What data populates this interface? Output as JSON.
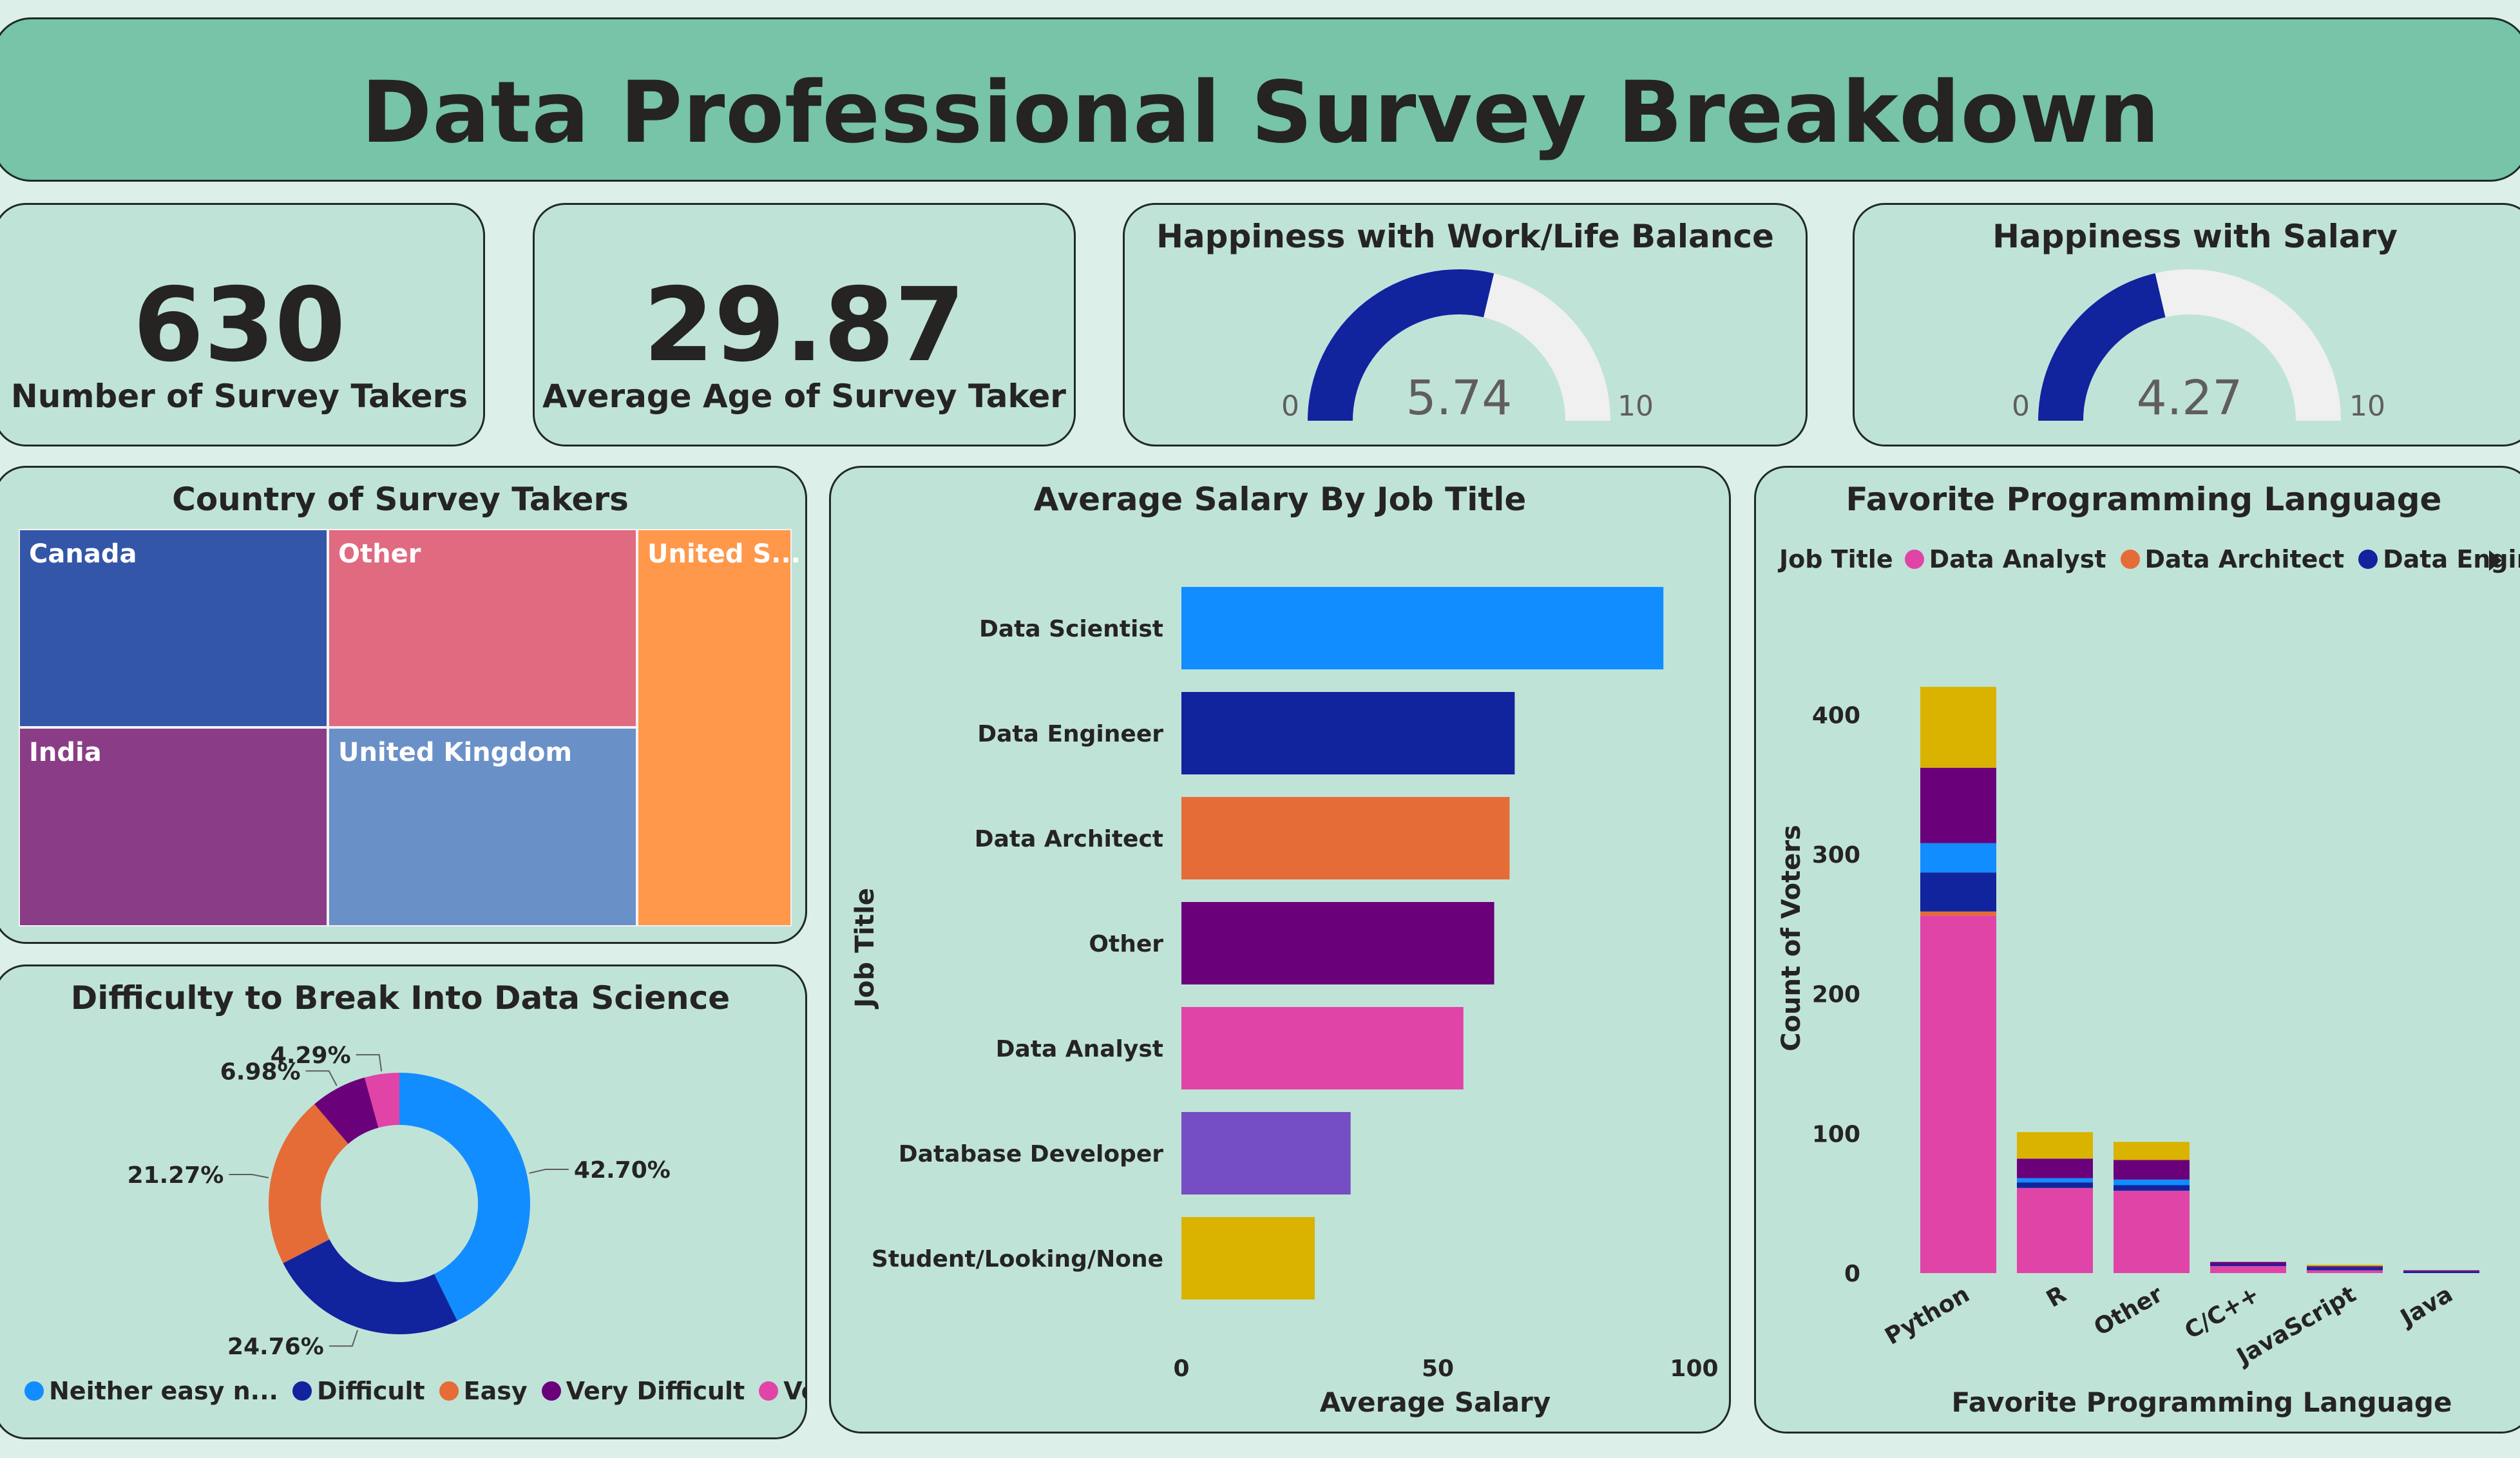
{
  "header": {
    "title": "Data Professional Survey Breakdown"
  },
  "kpis": {
    "survey_takers": {
      "value": "630",
      "label": "Number of Survey Takers"
    },
    "average_age": {
      "value": "29.87",
      "label": "Average Age of Survey Taker"
    }
  },
  "gauges": {
    "work_life": {
      "title": "Happiness with Work/Life Balance",
      "value": 5.74,
      "value_label": "5.74",
      "min_label": "0",
      "max_label": "10",
      "min": 0,
      "max": 10
    },
    "salary": {
      "title": "Happiness with Salary",
      "value": 4.27,
      "value_label": "4.27",
      "min_label": "0",
      "max_label": "10",
      "min": 0,
      "max": 10
    }
  },
  "treemap": {
    "title": "Country of Survey Takers",
    "cells": [
      {
        "label": "Canada",
        "color": "#3356a8"
      },
      {
        "label": "Other",
        "color": "#e06a80"
      },
      {
        "label": "United S...",
        "color": "#ff984a"
      },
      {
        "label": "India",
        "color": "#8a3d86"
      },
      {
        "label": "United Kingdom",
        "color": "#6a90c8"
      }
    ]
  },
  "donut": {
    "title": "Difficulty to Break Into Data Science",
    "legend": [
      {
        "label": "Neither easy n...",
        "color": "#118dff"
      },
      {
        "label": "Difficult",
        "color": "#12239e"
      },
      {
        "label": "Easy",
        "color": "#e66c37"
      },
      {
        "label": "Very Difficult",
        "color": "#6b007b"
      },
      {
        "label": "Very Easy",
        "color": "#e044a7"
      }
    ]
  },
  "salary_chart": {
    "title": "Average Salary By Job Title",
    "ylabel": "Job Title",
    "xlabel": "Average Salary",
    "ticks": [
      "0",
      "50",
      "100"
    ]
  },
  "language_chart": {
    "title": "Favorite Programming Language",
    "legend_title": "Job Title",
    "legend": [
      {
        "label": "Data Analyst",
        "color": "#e044a7"
      },
      {
        "label": "Data Architect",
        "color": "#e66c37"
      },
      {
        "label": "Data Engin...",
        "color": "#12239e"
      }
    ],
    "ylabel": "Count of Voters",
    "xlabel": "Favorite Programming Language",
    "yticks": [
      "0",
      "100",
      "200",
      "300",
      "400"
    ]
  },
  "chart_data": [
    {
      "type": "pie",
      "title": "Difficulty to Break Into Data Science",
      "categories": [
        "Neither easy nor difficult",
        "Difficult",
        "Easy",
        "Very Difficult",
        "Very Easy"
      ],
      "values": [
        42.7,
        24.76,
        21.27,
        6.98,
        4.29
      ],
      "value_labels": [
        "42.70%",
        "24.76%",
        "21.27%",
        "6.98%",
        "4.29%"
      ],
      "colors": [
        "#118dff",
        "#12239e",
        "#e66c37",
        "#6b007b",
        "#e044a7"
      ],
      "legend": "bottom"
    },
    {
      "type": "bar",
      "orientation": "horizontal",
      "title": "Average Salary By Job Title",
      "categories": [
        "Data Scientist",
        "Data Engineer",
        "Data Architect",
        "Other",
        "Data Analyst",
        "Database Developer",
        "Student/Looking/None"
      ],
      "values": [
        94,
        65,
        64,
        61,
        55,
        33,
        26
      ],
      "colors": [
        "#118dff",
        "#12239e",
        "#e66c37",
        "#6b007b",
        "#e044a7",
        "#744ec2",
        "#d9b300"
      ],
      "xlabel": "Average Salary",
      "ylabel": "Job Title",
      "xlim": [
        0,
        100
      ]
    },
    {
      "type": "bar",
      "stacked": true,
      "title": "Favorite Programming Language",
      "categories": [
        "Python",
        "R",
        "Other",
        "C/C++",
        "JavaScript",
        "Java"
      ],
      "series": [
        {
          "name": "Data Analyst",
          "color": "#e044a7",
          "values": [
            256,
            61,
            59,
            5,
            2,
            0
          ]
        },
        {
          "name": "Data Architect",
          "color": "#e66c37",
          "values": [
            3,
            0,
            0,
            0,
            0,
            0
          ]
        },
        {
          "name": "Data Engineer",
          "color": "#12239e",
          "values": [
            28,
            4,
            4,
            1,
            2,
            1
          ]
        },
        {
          "color": "#118dff",
          "values": [
            21,
            3,
            4,
            0,
            0,
            0
          ]
        },
        {
          "color": "#6b007b",
          "values": [
            54,
            14,
            14,
            2,
            1,
            1
          ]
        },
        {
          "color": "#d9b300",
          "values": [
            58,
            19,
            13,
            0,
            1,
            0
          ]
        }
      ],
      "xlabel": "Favorite Programming Language",
      "ylabel": "Count of Voters",
      "ylim": [
        0,
        420
      ],
      "legend": "top"
    }
  ]
}
